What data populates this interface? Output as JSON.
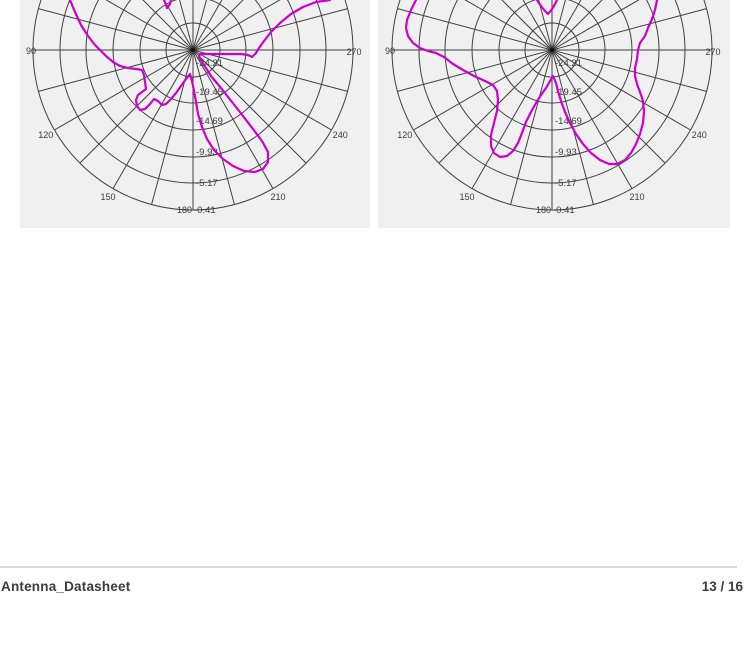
{
  "footer": {
    "document_title": "Antenna_Datasheet",
    "page_indicator": "13 / 16",
    "page_current": "13",
    "page_total": "16"
  },
  "chart_data": [
    {
      "panel": "left",
      "type": "polar_radiation_pattern",
      "curve_color": "#cc00cc",
      "grid_color": "#404040",
      "label_color": "#3a3a3a",
      "background": "#f0f0f0",
      "grid": {
        "rings": 6,
        "spoke_step_deg": 15,
        "angle_label_step_deg": 30
      },
      "angle_tick_labels": [
        {
          "deg": 90,
          "text": "90"
        },
        {
          "deg": 120,
          "text": "120"
        },
        {
          "deg": 150,
          "text": "150"
        },
        {
          "deg": 180,
          "text": "180"
        },
        {
          "deg": 210,
          "text": "210"
        },
        {
          "deg": 240,
          "text": "240"
        },
        {
          "deg": 270,
          "text": "270"
        }
      ],
      "radial_tick_labels": [
        "-24.21",
        "-19.45",
        "-14.69",
        "-9.93",
        "-5.17",
        "-0.41"
      ],
      "curve_segments_xy": [
        [
          [
            -29,
            -50
          ],
          [
            -27,
            -45
          ],
          [
            -26,
            -42
          ],
          [
            -23,
            -46
          ],
          [
            -22,
            -50
          ]
        ],
        [
          [
            -123,
            -50
          ],
          [
            -118,
            -38
          ],
          [
            -112,
            -25
          ],
          [
            -105,
            -14
          ],
          [
            -98,
            -5
          ],
          [
            -93,
            0
          ],
          [
            -87,
            6
          ],
          [
            -80,
            12
          ],
          [
            -73,
            16
          ],
          [
            -65,
            18
          ],
          [
            -57,
            19
          ],
          [
            -51,
            20
          ],
          [
            -49,
            25
          ],
          [
            -48,
            32
          ],
          [
            -47,
            39
          ],
          [
            -51,
            42
          ],
          [
            -55,
            45
          ],
          [
            -57,
            50
          ],
          [
            -56,
            56
          ],
          [
            -53,
            60
          ],
          [
            -48,
            59
          ],
          [
            -43,
            54
          ],
          [
            -39,
            49
          ],
          [
            -35,
            51
          ],
          [
            -31,
            55
          ],
          [
            -27,
            54
          ],
          [
            -22,
            49
          ],
          [
            -17,
            43
          ],
          [
            -12,
            36
          ],
          [
            -7,
            29
          ],
          [
            -3,
            24
          ],
          [
            -1,
            31
          ],
          [
            1,
            41
          ],
          [
            3,
            52
          ],
          [
            5,
            64
          ],
          [
            9,
            77
          ],
          [
            14,
            89
          ],
          [
            21,
            100
          ],
          [
            30,
            109
          ],
          [
            40,
            116
          ],
          [
            51,
            121
          ],
          [
            62,
            122
          ],
          [
            70,
            119
          ],
          [
            75,
            112
          ],
          [
            75,
            102
          ],
          [
            69,
            91
          ],
          [
            60,
            79
          ],
          [
            50,
            66
          ],
          [
            39,
            52
          ],
          [
            28,
            38
          ],
          [
            18,
            26
          ],
          [
            11,
            15
          ],
          [
            6,
            7
          ],
          [
            7,
            4
          ],
          [
            14,
            4
          ],
          [
            25,
            4
          ],
          [
            37,
            4
          ],
          [
            48,
            4
          ],
          [
            55,
            5
          ],
          [
            59,
            7
          ],
          [
            63,
            3
          ],
          [
            66,
            -2
          ],
          [
            71,
            -9
          ],
          [
            78,
            -18
          ],
          [
            87,
            -27
          ],
          [
            98,
            -36
          ],
          [
            110,
            -43
          ],
          [
            123,
            -48
          ],
          [
            137,
            -50
          ]
        ]
      ]
    },
    {
      "panel": "right",
      "type": "polar_radiation_pattern",
      "curve_color": "#cc00cc",
      "grid_color": "#404040",
      "label_color": "#3a3a3a",
      "background": "#f0f0f0",
      "grid": {
        "rings": 6,
        "spoke_step_deg": 15,
        "angle_label_step_deg": 30
      },
      "angle_tick_labels": [
        {
          "deg": 90,
          "text": "90"
        },
        {
          "deg": 120,
          "text": "120"
        },
        {
          "deg": 150,
          "text": "150"
        },
        {
          "deg": 180,
          "text": "180"
        },
        {
          "deg": 210,
          "text": "210"
        },
        {
          "deg": 240,
          "text": "240"
        },
        {
          "deg": 270,
          "text": "270"
        }
      ],
      "radial_tick_labels": [
        "-24.21",
        "-19.45",
        "-14.69",
        "-9.93",
        "-5.17",
        "-0.41"
      ],
      "curve_segments_xy": [
        [
          [
            -15,
            -50
          ],
          [
            -11,
            -44
          ],
          [
            -7,
            -39
          ],
          [
            -4,
            -36
          ],
          [
            0,
            -41
          ],
          [
            3,
            -46
          ],
          [
            5,
            -50
          ]
        ],
        [
          [
            -136,
            -50
          ],
          [
            -141,
            -40
          ],
          [
            -145,
            -30
          ],
          [
            -146,
            -22
          ],
          [
            -144,
            -14
          ],
          [
            -139,
            -7
          ],
          [
            -132,
            -2
          ],
          [
            -124,
            1
          ],
          [
            -116,
            3
          ],
          [
            -108,
            7
          ],
          [
            -99,
            14
          ],
          [
            -89,
            20
          ],
          [
            -78,
            26
          ],
          [
            -67,
            31
          ],
          [
            -59,
            35
          ],
          [
            -55,
            41
          ],
          [
            -54,
            50
          ],
          [
            -55,
            61
          ],
          [
            -58,
            73
          ],
          [
            -61,
            85
          ],
          [
            -61,
            96
          ],
          [
            -58,
            103
          ],
          [
            -52,
            107
          ],
          [
            -45,
            106
          ],
          [
            -39,
            101
          ],
          [
            -34,
            93
          ],
          [
            -30,
            83
          ],
          [
            -26,
            72
          ],
          [
            -21,
            62
          ],
          [
            -16,
            53
          ],
          [
            -11,
            45
          ],
          [
            -6,
            38
          ],
          [
            -2,
            31
          ],
          [
            1,
            26
          ],
          [
            4,
            33
          ],
          [
            6,
            41
          ],
          [
            9,
            51
          ],
          [
            13,
            62
          ],
          [
            18,
            73
          ],
          [
            24,
            84
          ],
          [
            31,
            94
          ],
          [
            39,
            103
          ],
          [
            48,
            110
          ],
          [
            57,
            114
          ],
          [
            65,
            114
          ],
          [
            73,
            110
          ],
          [
            79,
            103
          ],
          [
            84,
            94
          ],
          [
            88,
            84
          ],
          [
            91,
            73
          ],
          [
            92,
            62
          ],
          [
            91,
            51
          ],
          [
            88,
            42
          ],
          [
            85,
            34
          ],
          [
            83,
            26
          ],
          [
            83,
            18
          ],
          [
            85,
            9
          ],
          [
            86,
            0
          ],
          [
            88,
            -7
          ],
          [
            93,
            -14
          ],
          [
            96,
            -22
          ],
          [
            100,
            -31
          ],
          [
            103,
            -40
          ],
          [
            105,
            -50
          ]
        ]
      ]
    }
  ]
}
